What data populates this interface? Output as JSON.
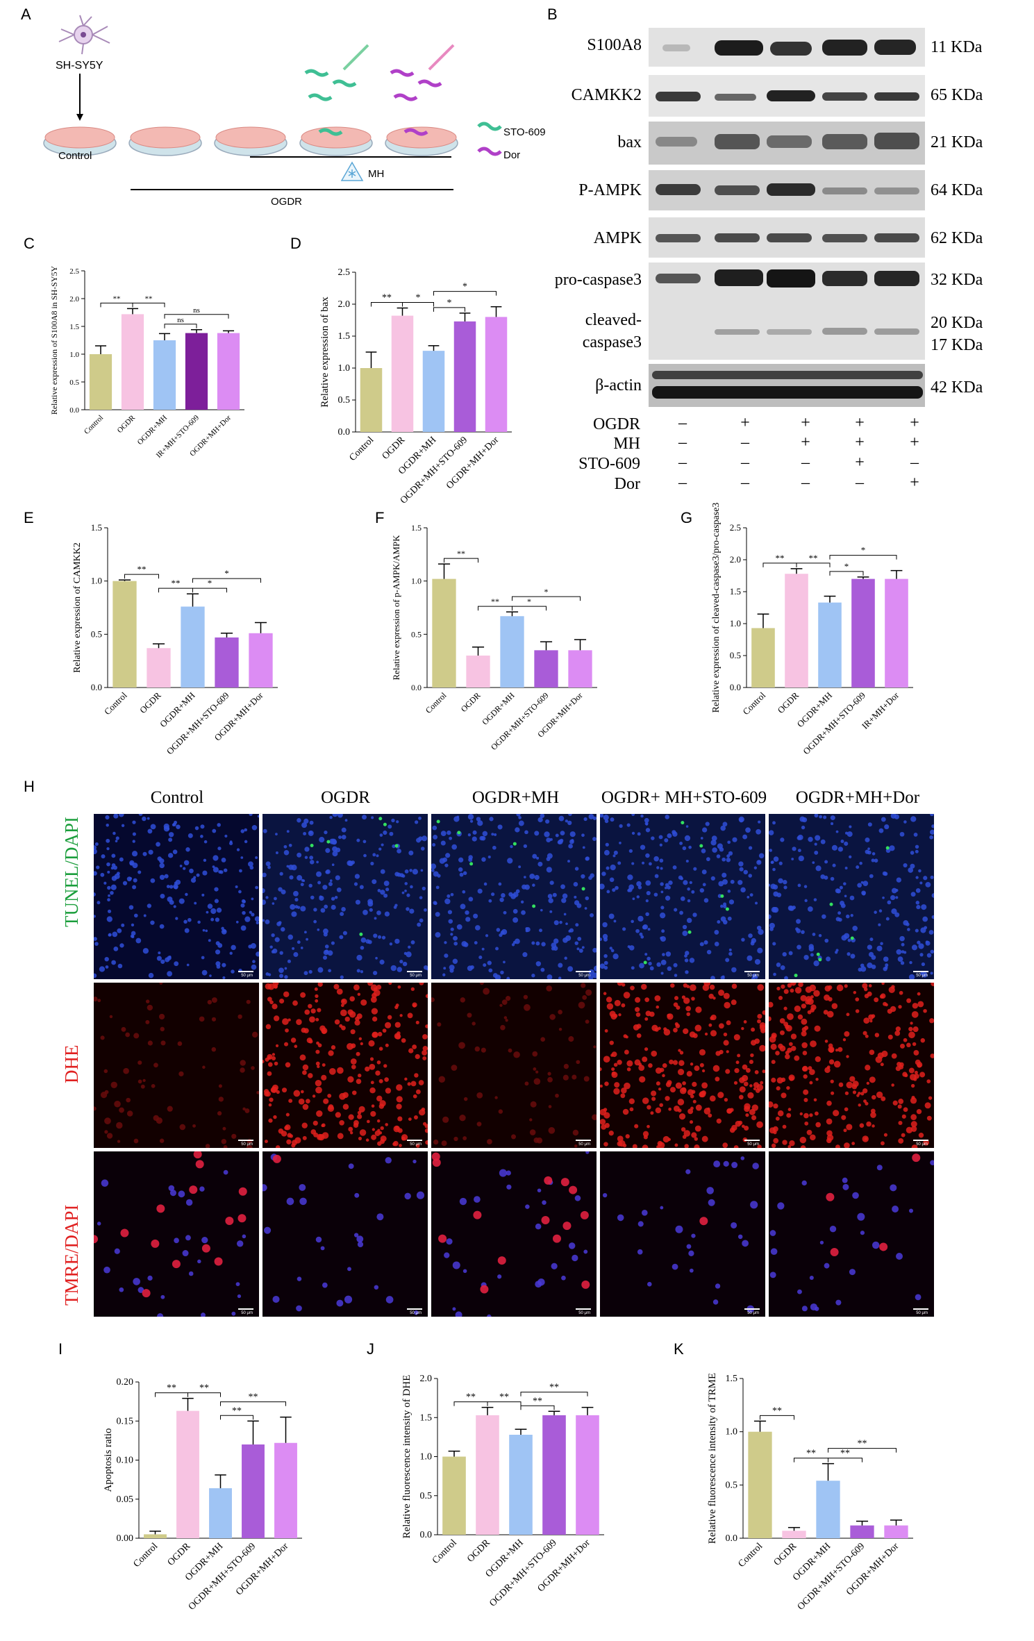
{
  "panels": {
    "A": "A",
    "B": "B",
    "C": "C",
    "D": "D",
    "E": "E",
    "F": "F",
    "G": "G",
    "H": "H",
    "I": "I",
    "J": "J",
    "K": "K"
  },
  "schematic": {
    "cell_line": "SH-SY5Y",
    "control_label": "Control",
    "mh_label": "MH",
    "ogdr_label": "OGDR",
    "legend_sto": "STO-609",
    "legend_dor": "Dor"
  },
  "western": {
    "bands": [
      {
        "label": "S100A8",
        "kda": "11 KDa"
      },
      {
        "label": "CAMKK2",
        "kda": "65 KDa"
      },
      {
        "label": "bax",
        "kda": "21 KDa"
      },
      {
        "label": "P-AMPK",
        "kda": "64 KDa"
      },
      {
        "label": "AMPK",
        "kda": "62 KDa"
      },
      {
        "label": "pro-caspase3",
        "kda": "32 KDa"
      },
      {
        "label": "cleaved-",
        "kda": "20 KDa"
      },
      {
        "label": "caspase3",
        "kda": "17 KDa"
      },
      {
        "label": "β-actin",
        "kda": "42 KDa"
      }
    ],
    "conditions": [
      {
        "name": "OGDR",
        "signs": [
          "–",
          "+",
          "+",
          "+",
          "+"
        ]
      },
      {
        "name": "MH",
        "signs": [
          "–",
          "–",
          "+",
          "+",
          "+"
        ]
      },
      {
        "name": "STO-609",
        "signs": [
          "–",
          "–",
          "–",
          "+",
          "–"
        ]
      },
      {
        "name": "Dor",
        "signs": [
          "–",
          "–",
          "–",
          "–",
          "+"
        ]
      }
    ]
  },
  "colors": {
    "control": "#cfcb8a",
    "ogdr": "#f7c3e2",
    "mh": "#9fc4f4",
    "sto": "#a95cd8",
    "dor": "#dc8cf3",
    "dark_purple": "#7d1f9a"
  },
  "microscopy": {
    "columns": [
      "Control",
      "OGDR",
      "OGDR+MH",
      "OGDR+ MH+STO-609",
      "OGDR+MH+Dor"
    ],
    "rows": [
      "TUNEL/DAPI",
      "DHE",
      "TMRE/DAPI"
    ],
    "scale": "50 μm"
  },
  "chart_data": [
    {
      "id": "C",
      "type": "bar",
      "ylabel": "Relative expression of S100A8 in SH-SY5Y",
      "ylim": [
        0,
        2.5
      ],
      "yticks": [
        "0.0",
        "0.5",
        "1.0",
        "1.5",
        "2.0",
        "2.5"
      ],
      "categories": [
        "Control",
        "OGDR",
        "OGDR+MH",
        "IR+MH+STO-609",
        "OGDR+MH+Dor"
      ],
      "values": [
        1.0,
        1.72,
        1.25,
        1.38,
        1.38
      ],
      "errors": [
        0.15,
        0.1,
        0.12,
        0.06,
        0.04
      ],
      "sig": [
        {
          "from": 0,
          "to": 1,
          "text": "**"
        },
        {
          "from": 1,
          "to": 2,
          "text": "**"
        },
        {
          "from": 2,
          "to": 3,
          "text": "ns"
        },
        {
          "from": 2,
          "to": 4,
          "text": "ns"
        }
      ]
    },
    {
      "id": "D",
      "type": "bar",
      "ylabel": "Relative expression of bax",
      "ylim": [
        0,
        2.5
      ],
      "yticks": [
        "0.0",
        "0.5",
        "1.0",
        "1.5",
        "2.0",
        "2.5"
      ],
      "categories": [
        "Control",
        "OGDR",
        "OGDR+MH",
        "OGDR+MH+STO-609",
        "OGDR+MH+Dor"
      ],
      "values": [
        1.0,
        1.82,
        1.27,
        1.73,
        1.8
      ],
      "errors": [
        0.25,
        0.12,
        0.08,
        0.13,
        0.16
      ],
      "sig": [
        {
          "from": 0,
          "to": 1,
          "text": "**"
        },
        {
          "from": 1,
          "to": 2,
          "text": "*"
        },
        {
          "from": 2,
          "to": 3,
          "text": "*"
        },
        {
          "from": 2,
          "to": 4,
          "text": "*"
        }
      ]
    },
    {
      "id": "E",
      "type": "bar",
      "ylabel": "Relative expression of CAMKK2",
      "ylim": [
        0,
        1.5
      ],
      "yticks": [
        "0.0",
        "0.5",
        "1.0",
        "1.5"
      ],
      "categories": [
        "Control",
        "OGDR",
        "OGDR+MH",
        "OGDR+MH+STO-609",
        "OGDR+MH+Dor"
      ],
      "values": [
        1.0,
        0.37,
        0.76,
        0.47,
        0.51
      ],
      "errors": [
        0.01,
        0.04,
        0.12,
        0.04,
        0.1
      ],
      "sig": [
        {
          "from": 0,
          "to": 1,
          "text": "**"
        },
        {
          "from": 1,
          "to": 2,
          "text": "**"
        },
        {
          "from": 2,
          "to": 3,
          "text": "*"
        },
        {
          "from": 2,
          "to": 4,
          "text": "*"
        }
      ]
    },
    {
      "id": "F",
      "type": "bar",
      "ylabel": "Relative expression of p-AMPK/AMPK",
      "ylim": [
        0,
        1.5
      ],
      "yticks": [
        "0.0",
        "0.5",
        "1.0",
        "1.5"
      ],
      "categories": [
        "Control",
        "OGDR",
        "OGDR+MH",
        "OGDR+MH+STO-609",
        "OGDR+MH+Dor"
      ],
      "values": [
        1.02,
        0.3,
        0.67,
        0.35,
        0.35
      ],
      "errors": [
        0.14,
        0.08,
        0.04,
        0.08,
        0.1
      ],
      "sig": [
        {
          "from": 0,
          "to": 1,
          "text": "**"
        },
        {
          "from": 1,
          "to": 2,
          "text": "**"
        },
        {
          "from": 2,
          "to": 3,
          "text": "*"
        },
        {
          "from": 2,
          "to": 4,
          "text": "*"
        }
      ]
    },
    {
      "id": "G",
      "type": "bar",
      "ylabel": "Relative expression of cleaved-caspase3/pro-caspase3",
      "ylim": [
        0,
        2.5
      ],
      "yticks": [
        "0.0",
        "0.5",
        "1.0",
        "1.5",
        "2.0",
        "2.5"
      ],
      "categories": [
        "Control",
        "OGDR",
        "OGDR+MH",
        "OGDR+MH+STO-609",
        "IR+MH+Dor"
      ],
      "values": [
        0.93,
        1.78,
        1.33,
        1.7,
        1.7
      ],
      "errors": [
        0.22,
        0.08,
        0.1,
        0.03,
        0.13
      ],
      "sig": [
        {
          "from": 0,
          "to": 1,
          "text": "**"
        },
        {
          "from": 1,
          "to": 2,
          "text": "**"
        },
        {
          "from": 2,
          "to": 3,
          "text": "*"
        },
        {
          "from": 2,
          "to": 4,
          "text": "*"
        }
      ]
    },
    {
      "id": "I",
      "type": "bar",
      "ylabel": "Apoptosis ratio",
      "ylim": [
        0,
        0.2
      ],
      "yticks": [
        "0.00",
        "0.05",
        "0.10",
        "0.15",
        "0.20"
      ],
      "categories": [
        "Control",
        "OGDR",
        "OGDR+MH",
        "OGDR+MH+STO-609",
        "OGDR+MH+Dor"
      ],
      "values": [
        0.005,
        0.163,
        0.064,
        0.12,
        0.122
      ],
      "errors": [
        0.004,
        0.016,
        0.017,
        0.03,
        0.033
      ],
      "sig": [
        {
          "from": 0,
          "to": 1,
          "text": "**"
        },
        {
          "from": 1,
          "to": 2,
          "text": "**"
        },
        {
          "from": 2,
          "to": 3,
          "text": "**"
        },
        {
          "from": 2,
          "to": 4,
          "text": "**"
        }
      ]
    },
    {
      "id": "J",
      "type": "bar",
      "ylabel": "Relative fluorescence intensity of DHE",
      "ylim": [
        0,
        2.0
      ],
      "yticks": [
        "0.0",
        "0.5",
        "1.0",
        "1.5",
        "2.0"
      ],
      "categories": [
        "Control",
        "OGDR",
        "OGDR+MH",
        "OGDR+MH+STO-609",
        "OGDR+MH+Dor"
      ],
      "values": [
        1.0,
        1.53,
        1.28,
        1.53,
        1.53
      ],
      "errors": [
        0.07,
        0.1,
        0.07,
        0.05,
        0.1
      ],
      "sig": [
        {
          "from": 0,
          "to": 1,
          "text": "**"
        },
        {
          "from": 1,
          "to": 2,
          "text": "**"
        },
        {
          "from": 2,
          "to": 3,
          "text": "**"
        },
        {
          "from": 2,
          "to": 4,
          "text": "**"
        }
      ]
    },
    {
      "id": "K",
      "type": "bar",
      "ylabel": "Relative fluorescence intensity of TRME",
      "ylim": [
        0,
        1.5
      ],
      "yticks": [
        "0.0",
        "0.5",
        "1.0",
        "1.5"
      ],
      "categories": [
        "Control",
        "OGDR",
        "OGDR+MH",
        "OGDR+MH+STO-609",
        "OGDR+MH+Dor"
      ],
      "values": [
        1.0,
        0.07,
        0.54,
        0.12,
        0.12
      ],
      "errors": [
        0.1,
        0.03,
        0.16,
        0.04,
        0.05
      ],
      "sig": [
        {
          "from": 0,
          "to": 1,
          "text": "**"
        },
        {
          "from": 1,
          "to": 2,
          "text": "**"
        },
        {
          "from": 2,
          "to": 3,
          "text": "**"
        },
        {
          "from": 2,
          "to": 4,
          "text": "**"
        }
      ]
    }
  ]
}
